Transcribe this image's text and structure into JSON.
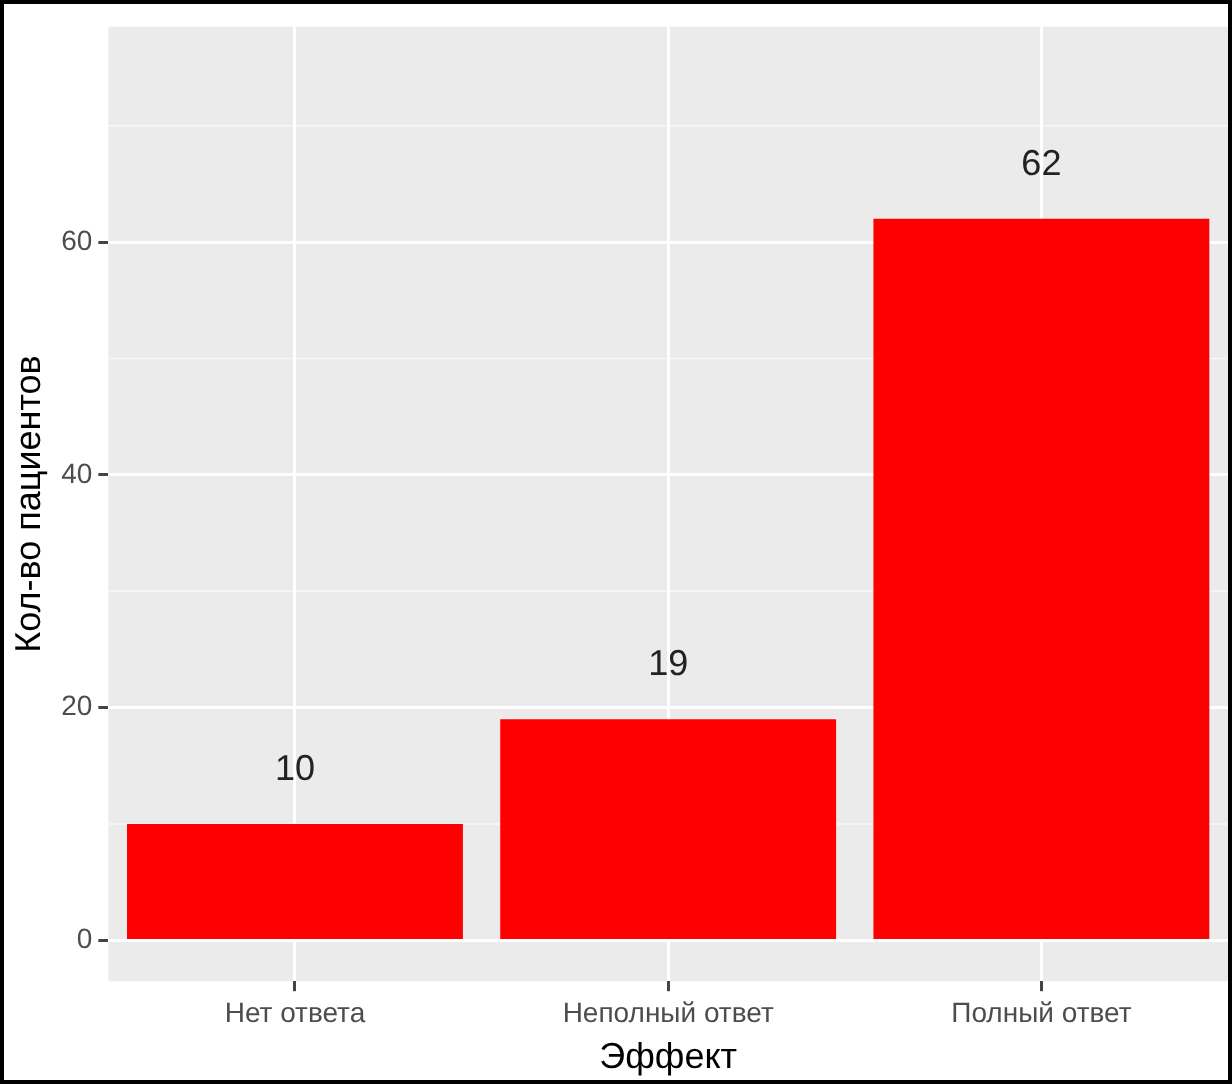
{
  "chart_data": {
    "type": "bar",
    "xlabel": "Эффект",
    "ylabel": "Кол-во пациентов",
    "categories": [
      "Нет ответа",
      "Неполный ответ",
      "Полный ответ"
    ],
    "values": [
      10,
      19,
      62
    ],
    "color": "#ff0000",
    "ylim": [
      -3.5,
      78.5
    ],
    "yticks": [
      0,
      20,
      40,
      60
    ],
    "grid": true,
    "data_labels": true
  }
}
